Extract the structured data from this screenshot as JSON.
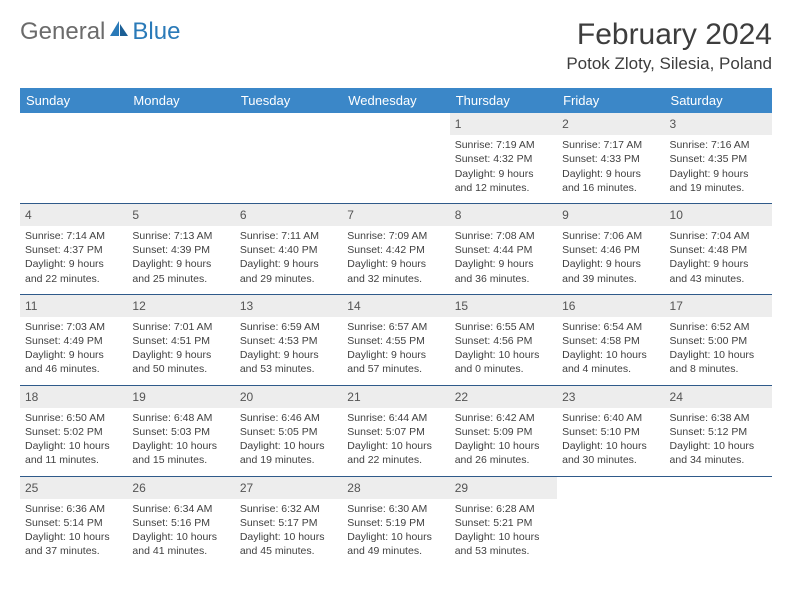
{
  "brand": {
    "part1": "General",
    "part2": "Blue"
  },
  "title": "February 2024",
  "location": "Potok Zloty, Silesia, Poland",
  "colors": {
    "header_bg": "#3b87c8",
    "header_text": "#ffffff",
    "daynum_bg": "#ededed",
    "row_border": "#2f5a8a",
    "body_text": "#414141"
  },
  "weekdays": [
    "Sunday",
    "Monday",
    "Tuesday",
    "Wednesday",
    "Thursday",
    "Friday",
    "Saturday"
  ],
  "weeks": [
    [
      null,
      null,
      null,
      null,
      {
        "n": "1",
        "sr": "7:19 AM",
        "ss": "4:32 PM",
        "dl": "9 hours and 12 minutes."
      },
      {
        "n": "2",
        "sr": "7:17 AM",
        "ss": "4:33 PM",
        "dl": "9 hours and 16 minutes."
      },
      {
        "n": "3",
        "sr": "7:16 AM",
        "ss": "4:35 PM",
        "dl": "9 hours and 19 minutes."
      }
    ],
    [
      {
        "n": "4",
        "sr": "7:14 AM",
        "ss": "4:37 PM",
        "dl": "9 hours and 22 minutes."
      },
      {
        "n": "5",
        "sr": "7:13 AM",
        "ss": "4:39 PM",
        "dl": "9 hours and 25 minutes."
      },
      {
        "n": "6",
        "sr": "7:11 AM",
        "ss": "4:40 PM",
        "dl": "9 hours and 29 minutes."
      },
      {
        "n": "7",
        "sr": "7:09 AM",
        "ss": "4:42 PM",
        "dl": "9 hours and 32 minutes."
      },
      {
        "n": "8",
        "sr": "7:08 AM",
        "ss": "4:44 PM",
        "dl": "9 hours and 36 minutes."
      },
      {
        "n": "9",
        "sr": "7:06 AM",
        "ss": "4:46 PM",
        "dl": "9 hours and 39 minutes."
      },
      {
        "n": "10",
        "sr": "7:04 AM",
        "ss": "4:48 PM",
        "dl": "9 hours and 43 minutes."
      }
    ],
    [
      {
        "n": "11",
        "sr": "7:03 AM",
        "ss": "4:49 PM",
        "dl": "9 hours and 46 minutes."
      },
      {
        "n": "12",
        "sr": "7:01 AM",
        "ss": "4:51 PM",
        "dl": "9 hours and 50 minutes."
      },
      {
        "n": "13",
        "sr": "6:59 AM",
        "ss": "4:53 PM",
        "dl": "9 hours and 53 minutes."
      },
      {
        "n": "14",
        "sr": "6:57 AM",
        "ss": "4:55 PM",
        "dl": "9 hours and 57 minutes."
      },
      {
        "n": "15",
        "sr": "6:55 AM",
        "ss": "4:56 PM",
        "dl": "10 hours and 0 minutes."
      },
      {
        "n": "16",
        "sr": "6:54 AM",
        "ss": "4:58 PM",
        "dl": "10 hours and 4 minutes."
      },
      {
        "n": "17",
        "sr": "6:52 AM",
        "ss": "5:00 PM",
        "dl": "10 hours and 8 minutes."
      }
    ],
    [
      {
        "n": "18",
        "sr": "6:50 AM",
        "ss": "5:02 PM",
        "dl": "10 hours and 11 minutes."
      },
      {
        "n": "19",
        "sr": "6:48 AM",
        "ss": "5:03 PM",
        "dl": "10 hours and 15 minutes."
      },
      {
        "n": "20",
        "sr": "6:46 AM",
        "ss": "5:05 PM",
        "dl": "10 hours and 19 minutes."
      },
      {
        "n": "21",
        "sr": "6:44 AM",
        "ss": "5:07 PM",
        "dl": "10 hours and 22 minutes."
      },
      {
        "n": "22",
        "sr": "6:42 AM",
        "ss": "5:09 PM",
        "dl": "10 hours and 26 minutes."
      },
      {
        "n": "23",
        "sr": "6:40 AM",
        "ss": "5:10 PM",
        "dl": "10 hours and 30 minutes."
      },
      {
        "n": "24",
        "sr": "6:38 AM",
        "ss": "5:12 PM",
        "dl": "10 hours and 34 minutes."
      }
    ],
    [
      {
        "n": "25",
        "sr": "6:36 AM",
        "ss": "5:14 PM",
        "dl": "10 hours and 37 minutes."
      },
      {
        "n": "26",
        "sr": "6:34 AM",
        "ss": "5:16 PM",
        "dl": "10 hours and 41 minutes."
      },
      {
        "n": "27",
        "sr": "6:32 AM",
        "ss": "5:17 PM",
        "dl": "10 hours and 45 minutes."
      },
      {
        "n": "28",
        "sr": "6:30 AM",
        "ss": "5:19 PM",
        "dl": "10 hours and 49 minutes."
      },
      {
        "n": "29",
        "sr": "6:28 AM",
        "ss": "5:21 PM",
        "dl": "10 hours and 53 minutes."
      },
      null,
      null
    ]
  ],
  "labels": {
    "sunrise": "Sunrise: ",
    "sunset": "Sunset: ",
    "daylight": "Daylight: "
  }
}
